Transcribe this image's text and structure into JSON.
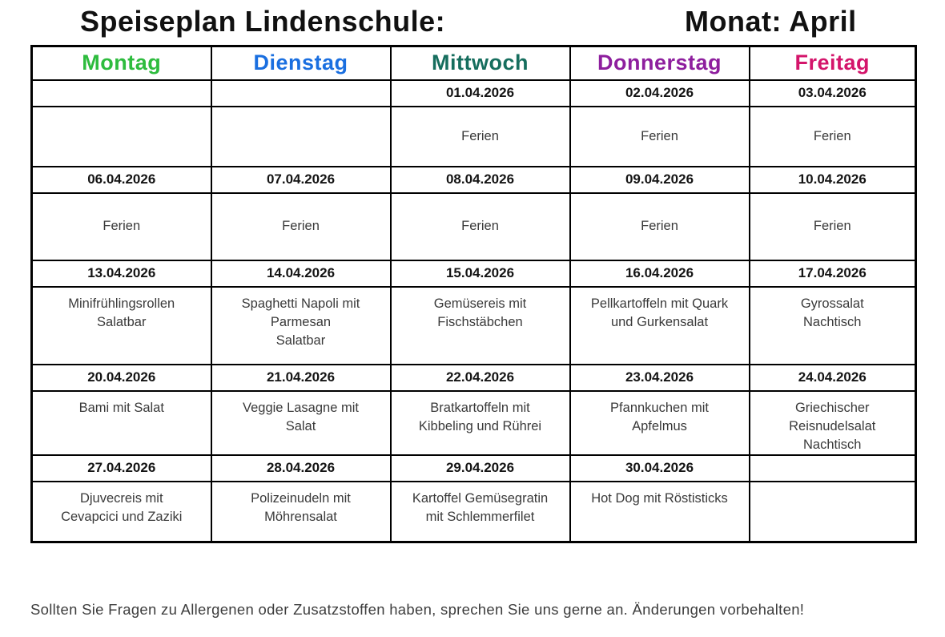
{
  "title_left": "Speiseplan Lindenschule:",
  "title_right": "Monat: April",
  "columns": [
    {
      "label": "Montag",
      "color": "#2ebc3e"
    },
    {
      "label": "Dienstag",
      "color": "#1a6fe0"
    },
    {
      "label": "Mittwoch",
      "color": "#166e5e"
    },
    {
      "label": "Donnerstag",
      "color": "#8e1f9e"
    },
    {
      "label": "Freitag",
      "color": "#d4156b"
    }
  ],
  "weeks": [
    {
      "dates": [
        "",
        "",
        "01.04.2026",
        "02.04.2026",
        "03.04.2026"
      ],
      "meals": [
        "",
        "",
        "Ferien",
        "Ferien",
        "Ferien"
      ]
    },
    {
      "dates": [
        "06.04.2026",
        "07.04.2026",
        "08.04.2026",
        "09.04.2026",
        "10.04.2026"
      ],
      "meals": [
        "Ferien",
        "Ferien",
        "Ferien",
        "Ferien",
        "Ferien"
      ]
    },
    {
      "dates": [
        "13.04.2026",
        "14.04.2026",
        "15.04.2026",
        "16.04.2026",
        "17.04.2026"
      ],
      "meals": [
        "Minifrühlingsrollen\nSalatbar",
        "Spaghetti Napoli mit\nParmesan\nSalatbar",
        "Gemüsereis mit\nFischstäbchen",
        "Pellkartoffeln mit Quark\nund Gurkensalat",
        "Gyrossalat\nNachtisch"
      ]
    },
    {
      "dates": [
        "20.04.2026",
        "21.04.2026",
        "22.04.2026",
        "23.04.2026",
        "24.04.2026"
      ],
      "meals": [
        "Bami mit Salat",
        "Veggie Lasagne mit\nSalat",
        "Bratkartoffeln mit\nKibbeling und Rührei",
        "Pfannkuchen mit\nApfelmus",
        "Griechischer\nReisnudelsalat\nNachtisch"
      ]
    },
    {
      "dates": [
        "27.04.2026",
        "28.04.2026",
        "29.04.2026",
        "30.04.2026",
        ""
      ],
      "meals": [
        "Djuvecreis mit\nCevapcici und Zaziki",
        "Polizeinudeln mit\nMöhrensalat",
        "Kartoffel Gemüsegratin\nmit Schlemmerfilet",
        "Hot Dog mit Röstisticks",
        ""
      ]
    }
  ],
  "footer": "Sollten Sie Fragen zu Allergenen oder Zusatzstoffen haben, sprechen Sie uns gerne an. Änderungen vorbehalten!"
}
